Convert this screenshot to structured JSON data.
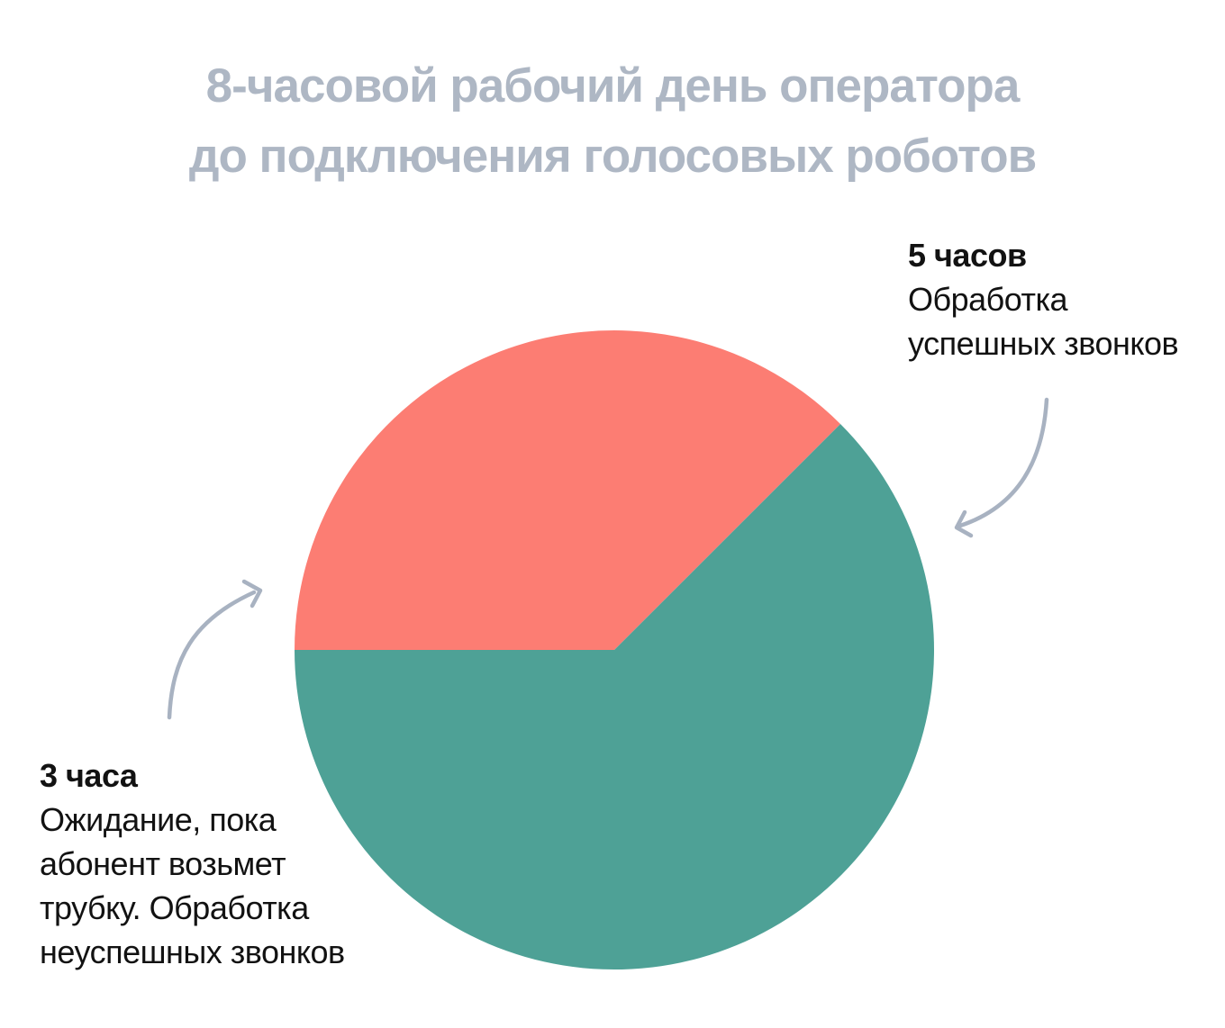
{
  "title": {
    "line1": "8-часовой рабочий день оператора",
    "line2": "до подключения голосовых роботов",
    "color": "#AEB7C4"
  },
  "chart_data": {
    "type": "pie",
    "title": "8-часовой рабочий день оператора до подключения голосовых роботов",
    "total_hours": 8,
    "start_angle_deg": 45,
    "legend_position": "none",
    "slices": [
      {
        "id": "unsuccessful-calls",
        "value": 3,
        "value_label": "3 часа",
        "label": "Ожидание, пока абонент возьмет трубку. Обработка неуспешных звонков",
        "color": "#FC7D73"
      },
      {
        "id": "successful-calls",
        "value": 5,
        "value_label": "5 часов",
        "label": "Обработка успешных звонков",
        "color": "#4EA196"
      }
    ]
  },
  "annotations": {
    "right": {
      "value_label": "5 часов",
      "lines": [
        "Обработка",
        "успешных звонков"
      ]
    },
    "left": {
      "value_label": "3 часа",
      "lines": [
        "Ожидание, пока",
        "абонент возьмет",
        "трубку. Обработка",
        "неуспешных звонков"
      ]
    }
  },
  "arrow_color": "#A8B2C1"
}
